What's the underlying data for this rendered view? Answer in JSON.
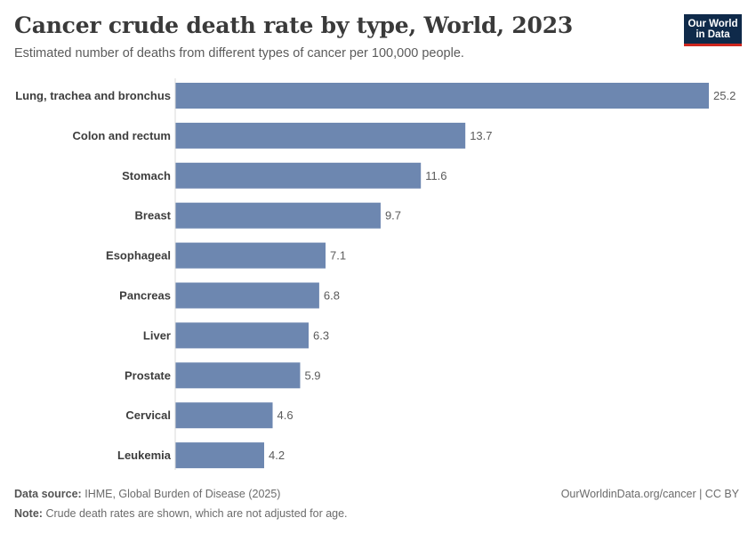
{
  "header": {
    "title": "Cancer crude death rate by type, World, 2023",
    "subtitle": "Estimated number of deaths from different types of cancer per 100,000 people."
  },
  "logo": {
    "line1": "Our World",
    "line2": "in Data"
  },
  "footer": {
    "source_label": "Data source:",
    "source_text": "IHME, Global Burden of Disease (2025)",
    "note_label": "Note:",
    "note_text": "Crude death rates are shown, which are not adjusted for age.",
    "link": "OurWorldinData.org/cancer | CC BY"
  },
  "colors": {
    "bar": "#6d87b0",
    "axis": "#d9d9d9",
    "label": "#3d3d3d",
    "value": "#5b5b5b"
  },
  "chart_data": {
    "type": "bar",
    "orientation": "horizontal",
    "categories": [
      "Lung, trachea and bronchus",
      "Colon and rectum",
      "Stomach",
      "Breast",
      "Esophageal",
      "Pancreas",
      "Liver",
      "Prostate",
      "Cervical",
      "Leukemia"
    ],
    "values": [
      25.2,
      13.7,
      11.6,
      9.7,
      7.1,
      6.8,
      6.3,
      5.9,
      4.6,
      4.2
    ],
    "value_labels": [
      "25.2",
      "13.7",
      "11.6",
      "9.7",
      "7.1",
      "6.8",
      "6.3",
      "5.9",
      "4.6",
      "4.2"
    ],
    "xlim": [
      0,
      25.2
    ],
    "grid": false,
    "legend": "none"
  }
}
